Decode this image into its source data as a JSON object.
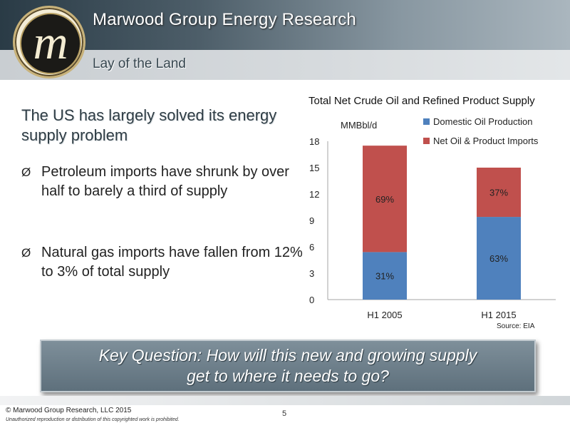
{
  "header": {
    "title": "Marwood Group Energy Research",
    "subtitle": "Lay of the Land",
    "logo_letter": "m"
  },
  "main": {
    "headline": "The US has largely solved its energy supply problem",
    "bullets": [
      "Petroleum imports have shrunk by over half to barely a third of supply",
      "Natural gas imports have fallen from 12% to 3% of total supply"
    ],
    "bullet_marker": "Ø"
  },
  "chart_data": {
    "type": "bar",
    "stacked": true,
    "title": "Total Net Crude Oil and Refined Product Supply",
    "ylabel": "MMBbl/d",
    "xlabel": "",
    "ylim": [
      0,
      18
    ],
    "yticks": [
      0,
      3,
      6,
      9,
      12,
      15,
      18
    ],
    "categories": [
      "H1 2005",
      "H1 2015"
    ],
    "series": [
      {
        "name": "Domestic Oil Production",
        "color": "#4f81bd",
        "values": [
          5.4,
          9.4
        ],
        "labels": [
          "31%",
          "63%"
        ]
      },
      {
        "name": "Net Oil & Product Imports",
        "color": "#c0504d",
        "values": [
          12.1,
          5.6
        ],
        "labels": [
          "69%",
          "37%"
        ]
      }
    ],
    "legend_position": "top-right",
    "grid": false
  },
  "source": "Source: EIA",
  "key_question": {
    "line1": "Key Question: How will this new and growing supply",
    "line2": "get to where it needs to go?"
  },
  "footer": {
    "copyright": "© Marwood Group Research, LLC 2015",
    "notice": "Unauthorized reproduction or distribution of this copyrighted work is prohibited.",
    "page_number": "5"
  },
  "colors": {
    "header_dark": "#2a3b46",
    "domestic": "#4f81bd",
    "imports": "#c0504d",
    "keyq_bg": "#6b7d89"
  }
}
